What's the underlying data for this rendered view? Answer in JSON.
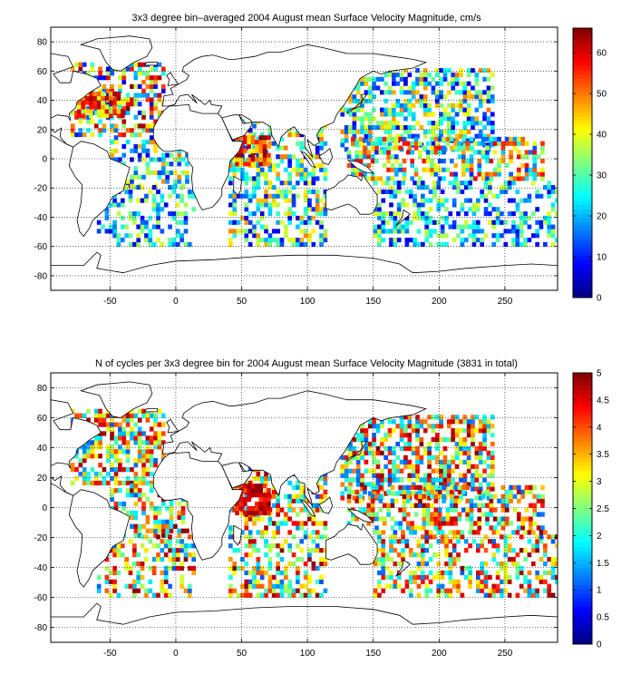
{
  "chart_data": [
    {
      "type": "heatmap",
      "title": "3x3 degree bin–averaged 2004 August mean Surface Velocity Magnitude, cm/s",
      "xlabel": "",
      "ylabel": "",
      "xlim": [
        -95,
        290
      ],
      "ylim": [
        -90,
        90
      ],
      "x_ticks": [
        -50,
        0,
        50,
        100,
        150,
        200,
        250
      ],
      "y_ticks": [
        80,
        60,
        40,
        20,
        0,
        -20,
        -40,
        -60,
        -80
      ],
      "grid": true,
      "colorbar": {
        "min": 0,
        "max": 66,
        "ticks": [
          0,
          10,
          20,
          30,
          40,
          50,
          60
        ],
        "colormap": "jet"
      },
      "bin_size_deg": 3,
      "regions": [
        {
          "name": "north-atlantic",
          "lon": [
            -80,
            -10
          ],
          "lat": [
            15,
            65
          ],
          "density": 0.55,
          "value_range": [
            5,
            66
          ]
        },
        {
          "name": "gulf-stream",
          "lon": [
            -75,
            -40
          ],
          "lat": [
            28,
            45
          ],
          "density": 0.8,
          "value_range": [
            35,
            66
          ]
        },
        {
          "name": "equatorial-atlantic",
          "lon": [
            -50,
            10
          ],
          "lat": [
            -20,
            15
          ],
          "density": 0.45,
          "value_range": [
            5,
            50
          ]
        },
        {
          "name": "south-atlantic",
          "lon": [
            -60,
            15
          ],
          "lat": [
            -60,
            -20
          ],
          "density": 0.45,
          "value_range": [
            5,
            40
          ]
        },
        {
          "name": "indian-ocean",
          "lon": [
            40,
            115
          ],
          "lat": [
            -60,
            25
          ],
          "density": 0.5,
          "value_range": [
            5,
            50
          ]
        },
        {
          "name": "somali-jet",
          "lon": [
            45,
            70
          ],
          "lat": [
            -5,
            15
          ],
          "density": 0.85,
          "value_range": [
            40,
            66
          ]
        },
        {
          "name": "north-pacific",
          "lon": [
            125,
            240
          ],
          "lat": [
            5,
            60
          ],
          "density": 0.55,
          "value_range": [
            5,
            50
          ]
        },
        {
          "name": "equatorial-pacific",
          "lon": [
            130,
            280
          ],
          "lat": [
            -15,
            15
          ],
          "density": 0.5,
          "value_range": [
            10,
            60
          ]
        },
        {
          "name": "south-pacific",
          "lon": [
            150,
            290
          ],
          "lat": [
            -60,
            -15
          ],
          "density": 0.45,
          "value_range": [
            5,
            40
          ]
        }
      ]
    },
    {
      "type": "heatmap",
      "title": "N of cycles per 3x3 degree bin for 2004 August mean Surface Velocity Magnitude (3831 in total)",
      "xlabel": "",
      "ylabel": "",
      "xlim": [
        -95,
        290
      ],
      "ylim": [
        -90,
        90
      ],
      "x_ticks": [
        -50,
        0,
        50,
        100,
        150,
        200,
        250
      ],
      "y_ticks": [
        80,
        60,
        40,
        20,
        0,
        -20,
        -40,
        -60,
        -80
      ],
      "grid": true,
      "colorbar": {
        "min": 0,
        "max": 5,
        "ticks": [
          0,
          0.5,
          1,
          1.5,
          2,
          2.5,
          3,
          3.5,
          4,
          4.5,
          5
        ],
        "colormap": "jet"
      },
      "total_cycles": 3831,
      "bin_size_deg": 3,
      "regions": [
        {
          "name": "north-atlantic",
          "lon": [
            -80,
            -10
          ],
          "lat": [
            15,
            65
          ],
          "density": 0.6,
          "value_range": [
            1,
            5
          ]
        },
        {
          "name": "equatorial-atlantic",
          "lon": [
            -50,
            10
          ],
          "lat": [
            -20,
            15
          ],
          "density": 0.45,
          "value_range": [
            1,
            5
          ]
        },
        {
          "name": "south-atlantic",
          "lon": [
            -60,
            15
          ],
          "lat": [
            -60,
            -20
          ],
          "density": 0.45,
          "value_range": [
            1,
            5
          ]
        },
        {
          "name": "indian-ocean",
          "lon": [
            40,
            115
          ],
          "lat": [
            -60,
            25
          ],
          "density": 0.5,
          "value_range": [
            1,
            5
          ]
        },
        {
          "name": "arabian-sea",
          "lon": [
            45,
            70
          ],
          "lat": [
            -5,
            15
          ],
          "density": 0.85,
          "value_range": [
            4,
            5
          ]
        },
        {
          "name": "north-pacific",
          "lon": [
            125,
            240
          ],
          "lat": [
            5,
            60
          ],
          "density": 0.6,
          "value_range": [
            1,
            5
          ]
        },
        {
          "name": "equatorial-pacific",
          "lon": [
            130,
            280
          ],
          "lat": [
            -15,
            15
          ],
          "density": 0.5,
          "value_range": [
            1,
            5
          ]
        },
        {
          "name": "south-pacific",
          "lon": [
            150,
            290
          ],
          "lat": [
            -60,
            -15
          ],
          "density": 0.45,
          "value_range": [
            1,
            5
          ]
        }
      ]
    }
  ]
}
